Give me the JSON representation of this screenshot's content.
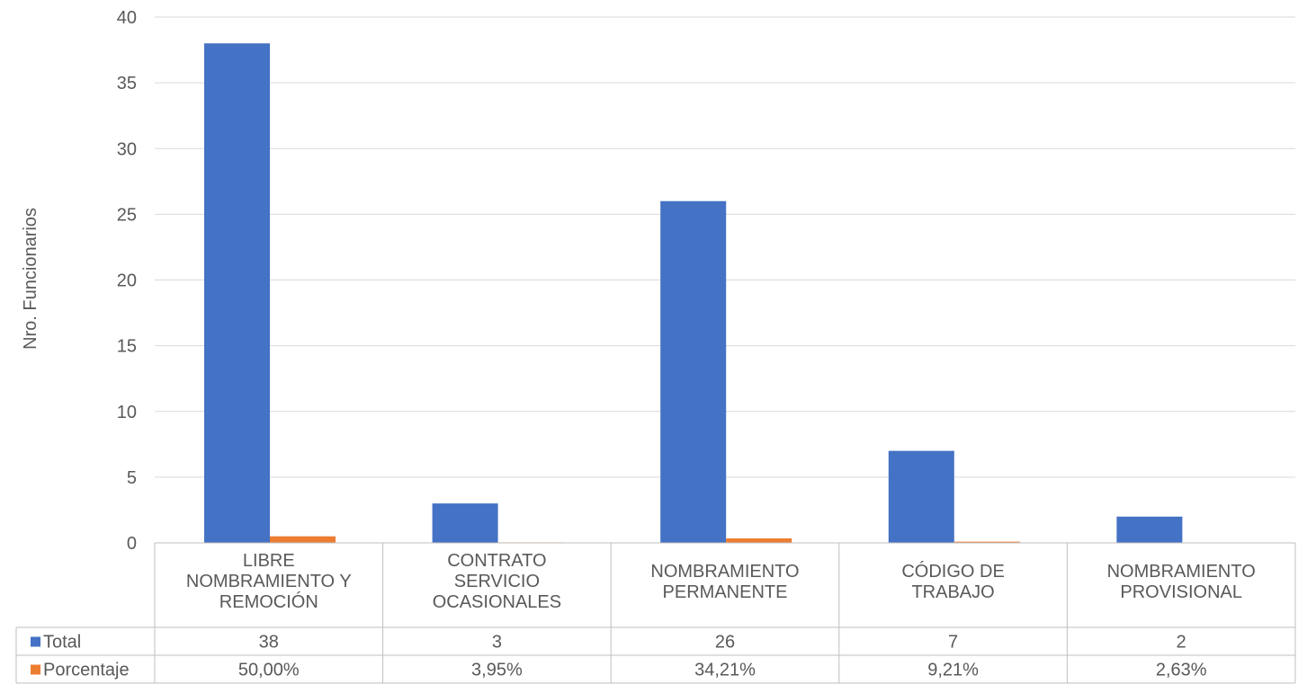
{
  "chart_data": {
    "type": "bar",
    "ylabel": "Nro. Funcionarios",
    "ylim": [
      0,
      40
    ],
    "yticks": [
      0,
      5,
      10,
      15,
      20,
      25,
      30,
      35,
      40
    ],
    "grid": true,
    "categories": [
      [
        "LIBRE",
        "NOMBRAMIENTO Y",
        "REMOCIÓN"
      ],
      [
        "CONTRATO",
        "SERVICIO",
        "OCASIONALES"
      ],
      [
        "NOMBRAMIENTO",
        "PERMANENTE"
      ],
      [
        "CÓDIGO DE",
        "TRABAJO"
      ],
      [
        "NOMBRAMIENTO",
        "PROVISIONAL"
      ]
    ],
    "series": [
      {
        "name": "Total",
        "color": "#4472C4",
        "values": [
          38,
          3,
          26,
          7,
          2
        ],
        "labels": [
          "38",
          "3",
          "26",
          "7",
          "2"
        ]
      },
      {
        "name": "Porcentaje",
        "color": "#ED7D31",
        "values": [
          0.5,
          0.0395,
          0.3421,
          0.0921,
          0.0263
        ],
        "labels": [
          "50,00%",
          "3,95%",
          "34,21%",
          "9,21%",
          "2,63%"
        ]
      }
    ],
    "legend": "data-table"
  }
}
